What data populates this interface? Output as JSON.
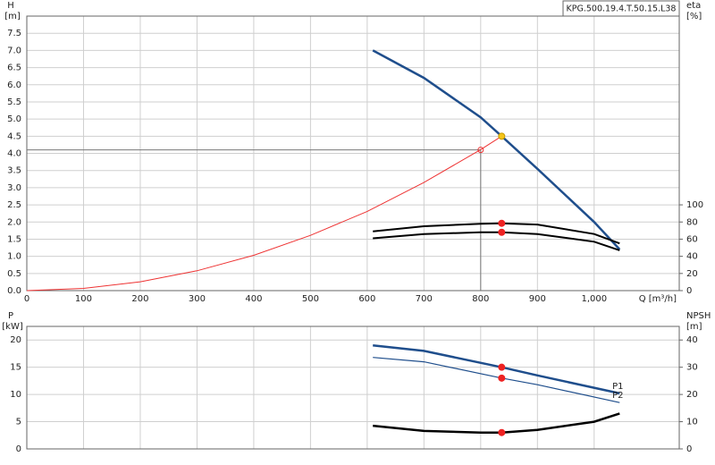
{
  "chart_data": [
    {
      "type": "line",
      "annotation": "KPG.500.19.4.T.50.15.L38",
      "ylabel": "H",
      "yunit": "[m]",
      "y2label": "eta",
      "y2unit": "[%]",
      "xlabel": "Q [m³/h]",
      "xlim": [
        0,
        1150
      ],
      "ylim": [
        0,
        8
      ],
      "y2lim": [
        0,
        320
      ],
      "xticks": [
        0,
        100,
        200,
        300,
        400,
        500,
        600,
        700,
        800,
        900,
        {
          "value": 1000,
          "label": "1,000"
        }
      ],
      "yticks": [
        {
          "value": 0,
          "label": "0.0"
        },
        {
          "value": 0.5,
          "label": "0.5"
        },
        {
          "value": 1,
          "label": "1.0"
        },
        {
          "value": 1.5,
          "label": "1.5"
        },
        {
          "value": 2,
          "label": "2.0"
        },
        {
          "value": 2.5,
          "label": "2.5"
        },
        {
          "value": 3,
          "label": "3.0"
        },
        {
          "value": 3.5,
          "label": "3.5"
        },
        {
          "value": 4,
          "label": "4.0"
        },
        {
          "value": 4.5,
          "label": "4.5"
        },
        {
          "value": 5,
          "label": "5.0"
        },
        {
          "value": 5.5,
          "label": "5.5"
        },
        {
          "value": 6,
          "label": "6.0"
        },
        {
          "value": 6.5,
          "label": "6.5"
        },
        {
          "value": 7,
          "label": "7.0"
        },
        {
          "value": 7.5,
          "label": "7.5"
        }
      ],
      "y2ticks": [
        0,
        20,
        40,
        60,
        80,
        100
      ],
      "grid": true,
      "show_xtick_labels": true,
      "series": [
        {
          "color": "#1f4e8c",
          "linewidth": 2.5,
          "x": [
            610,
            700,
            800,
            837,
            900,
            1000,
            1045
          ],
          "values": [
            7.0,
            6.2,
            5.05,
            4.5,
            3.55,
            2.0,
            1.2
          ]
        },
        {
          "color": "#ee3333",
          "linewidth": 1,
          "x": [
            0,
            100,
            200,
            300,
            400,
            500,
            600,
            700,
            800,
            837
          ],
          "values": [
            0,
            0.064,
            0.257,
            0.578,
            1.03,
            1.61,
            2.31,
            3.15,
            4.11,
            4.5
          ]
        },
        {
          "color": "#000000",
          "linewidth": 2,
          "axis": "y2",
          "x": [
            610,
            700,
            800,
            837,
            900,
            1000,
            1045
          ],
          "values": [
            69,
            75,
            78,
            78.5,
            77,
            66,
            55
          ]
        },
        {
          "color": "#000000",
          "linewidth": 2,
          "axis": "y2",
          "x": [
            610,
            700,
            800,
            837,
            900,
            1000,
            1045
          ],
          "values": [
            61,
            66,
            68,
            68,
            66,
            57,
            47
          ]
        }
      ],
      "points": [
        {
          "x": 837,
          "y": 4.5,
          "color": "#f5c518"
        },
        {
          "x": 837,
          "y": 78.5,
          "color": "#ee2222",
          "axis": "y2"
        },
        {
          "x": 837,
          "y": 68,
          "color": "#ee2222",
          "axis": "y2"
        }
      ],
      "reference": {
        "x": 800,
        "y": 4.1,
        "color": "#ee3333"
      }
    },
    {
      "type": "line",
      "ylabel": "P",
      "yunit": "[kW]",
      "y2label": "NPSH",
      "y2unit": "[m]",
      "xlim": [
        0,
        1150
      ],
      "ylim": [
        0,
        22.5
      ],
      "y2lim": [
        0,
        45
      ],
      "xticks": [
        0,
        100,
        200,
        300,
        400,
        500,
        600,
        700,
        800,
        900,
        1000
      ],
      "yticks": [
        0,
        5,
        10,
        15,
        20
      ],
      "y2ticks": [
        0,
        10,
        20,
        30,
        40
      ],
      "grid": true,
      "show_xtick_labels": false,
      "series": [
        {
          "name": "P1",
          "color": "#1f4e8c",
          "linewidth": 2.5,
          "x": [
            610,
            700,
            837,
            900,
            1045
          ],
          "values": [
            19.0,
            18.0,
            15.0,
            13.5,
            10.2
          ]
        },
        {
          "name": "P2",
          "color": "#1f4e8c",
          "linewidth": 1.2,
          "x": [
            610,
            700,
            837,
            900,
            1045
          ],
          "values": [
            16.8,
            16.0,
            13.0,
            11.8,
            8.5
          ]
        },
        {
          "color": "#000000",
          "linewidth": 2.5,
          "axis": "y2",
          "x": [
            610,
            700,
            800,
            837,
            900,
            1000,
            1045
          ],
          "values": [
            8.5,
            6.6,
            6.0,
            6.0,
            7.0,
            10.0,
            13.0
          ]
        }
      ],
      "points": [
        {
          "x": 837,
          "y": 15.0,
          "color": "#ee2222"
        },
        {
          "x": 837,
          "y": 13.0,
          "color": "#ee2222"
        },
        {
          "x": 837,
          "y": 6.0,
          "color": "#ee2222",
          "axis": "y2"
        }
      ]
    }
  ]
}
